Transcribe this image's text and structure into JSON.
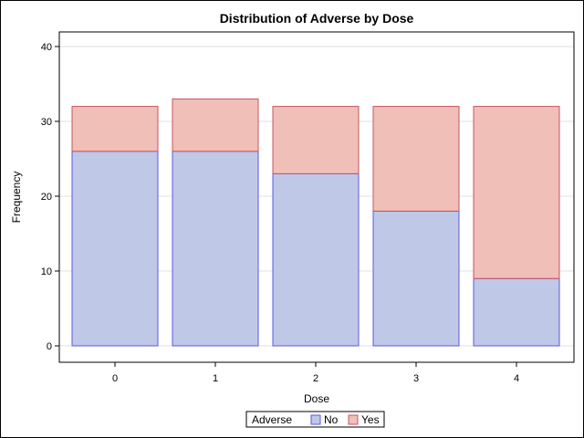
{
  "chart_data": {
    "type": "bar",
    "stacked": true,
    "title": "Distribution of Adverse by Dose",
    "xlabel": "Dose",
    "ylabel": "Frequency",
    "categories": [
      "0",
      "1",
      "2",
      "3",
      "4"
    ],
    "series": [
      {
        "name": "No",
        "values": [
          26,
          26,
          23,
          18,
          9
        ],
        "fill": "#bfc8e6",
        "stroke": "#5a5ae0"
      },
      {
        "name": "Yes",
        "values": [
          6,
          7,
          9,
          14,
          23
        ],
        "fill": "#efbfb8",
        "stroke": "#c8545f"
      }
    ],
    "ylim": [
      0,
      42
    ],
    "yticks": [
      0,
      10,
      20,
      30,
      40
    ],
    "grid": true,
    "legend": {
      "title": "Adverse",
      "placement": "bottom"
    }
  }
}
